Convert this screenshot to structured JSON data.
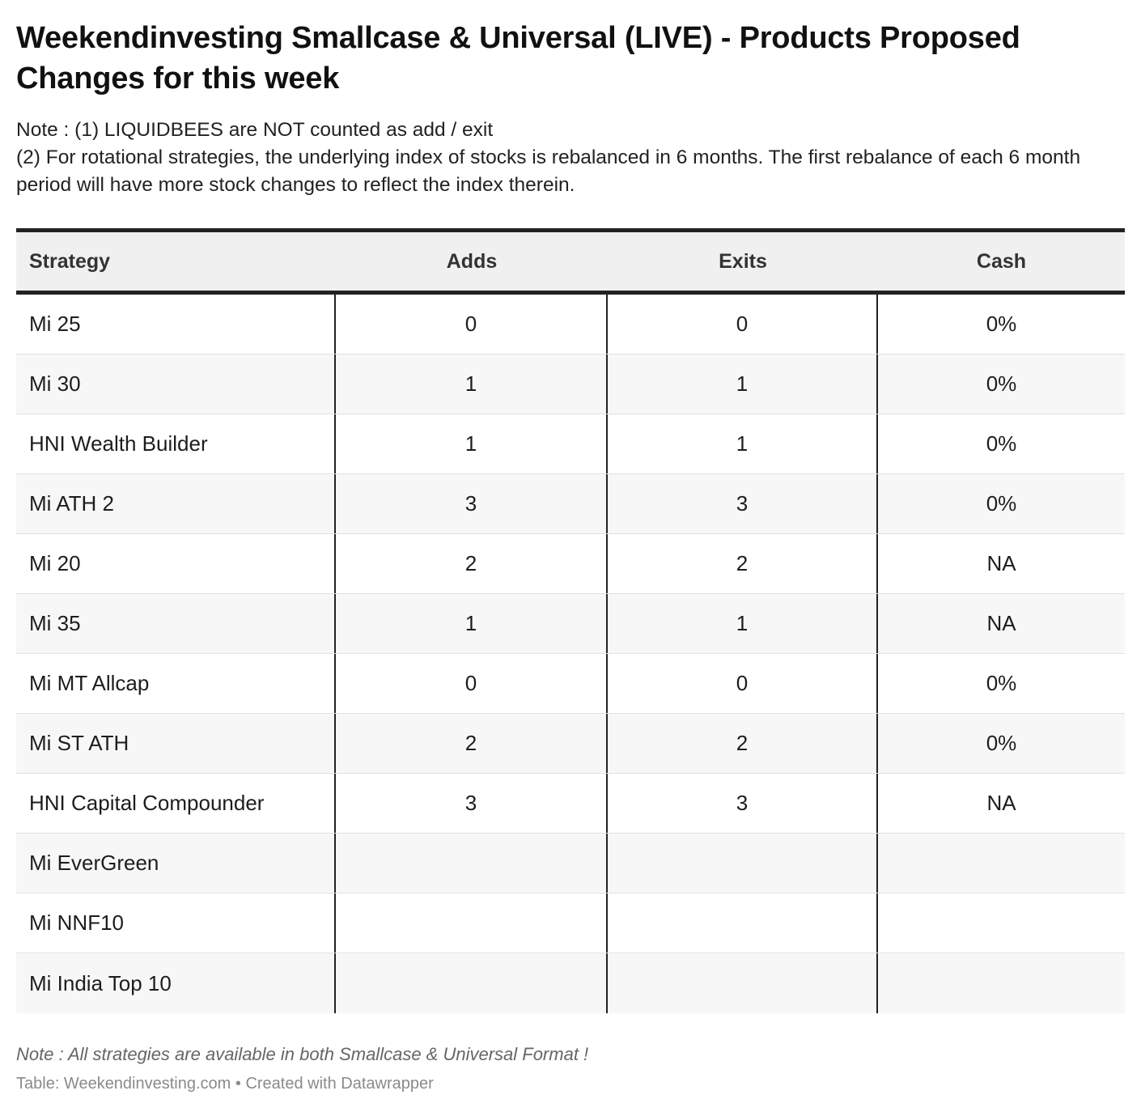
{
  "header": {
    "title": "Weekendinvesting Smallcase & Universal (LIVE) - Products Proposed Changes for this week",
    "note_line1": "Note : (1) LIQUIDBEES are NOT counted as add / exit",
    "note_line2": "(2) For rotational strategies, the underlying index of stocks is rebalanced in 6 months. The first rebalance of each 6 month period will have more stock changes to reflect the index therein."
  },
  "table": {
    "columns": [
      "Strategy",
      "Adds",
      "Exits",
      "Cash"
    ],
    "rows": [
      [
        "Mi 25",
        "0",
        "0",
        "0%"
      ],
      [
        "Mi 30",
        "1",
        "1",
        "0%"
      ],
      [
        "HNI Wealth Builder",
        "1",
        "1",
        "0%"
      ],
      [
        "Mi ATH 2",
        "3",
        "3",
        "0%"
      ],
      [
        "Mi 20",
        "2",
        "2",
        "NA"
      ],
      [
        "Mi 35",
        "1",
        "1",
        "NA"
      ],
      [
        "Mi MT Allcap",
        "0",
        "0",
        "0%"
      ],
      [
        "Mi ST ATH",
        "2",
        "2",
        "0%"
      ],
      [
        "HNI Capital Compounder",
        "3",
        "3",
        "NA"
      ],
      [
        "Mi EverGreen",
        "",
        "",
        ""
      ],
      [
        "Mi NNF10",
        "",
        "",
        ""
      ],
      [
        "Mi India Top 10",
        "",
        "",
        ""
      ]
    ]
  },
  "footer": {
    "note": "Note : All strategies are available in both Smallcase & Universal Format !",
    "source": "Table: Weekendinvesting.com • Created with Datawrapper"
  },
  "colors": {
    "header_bg": "#f0f0f0",
    "rule": "#222222",
    "row_alt": "#f7f7f7"
  }
}
